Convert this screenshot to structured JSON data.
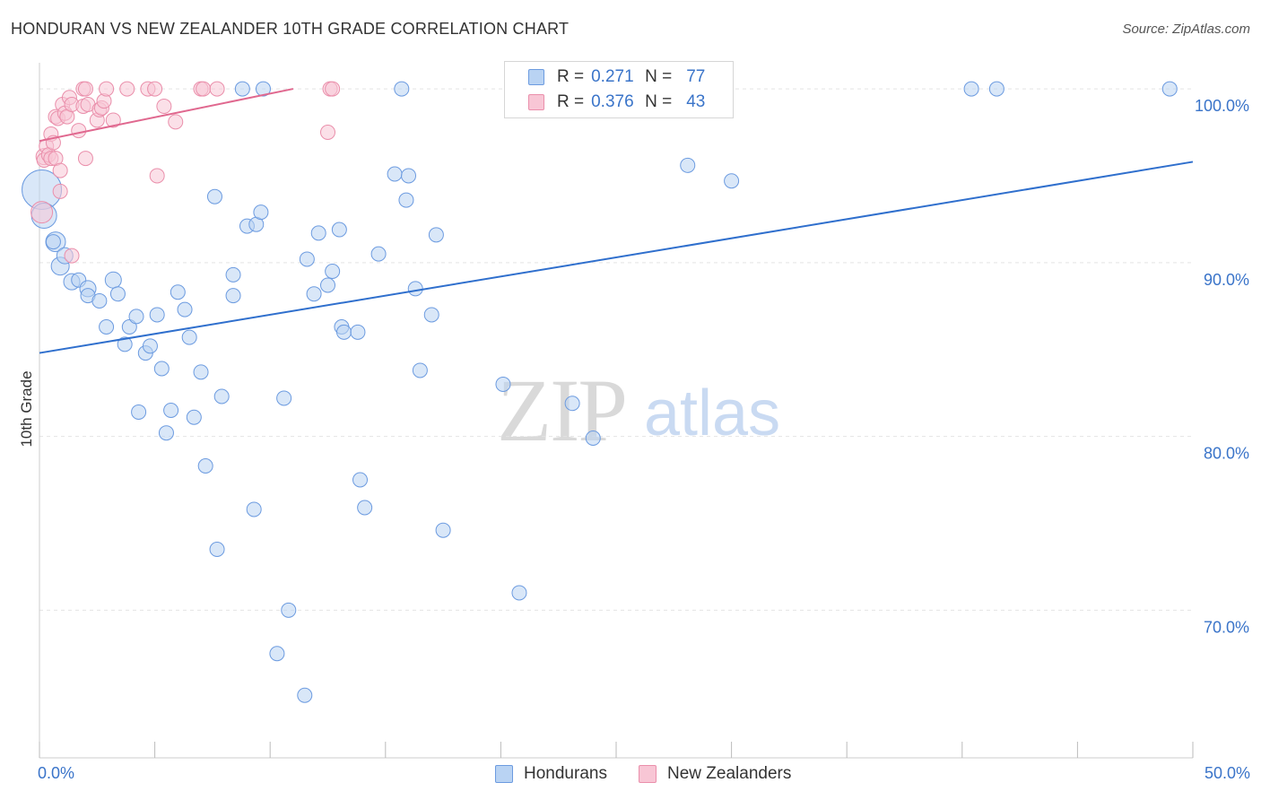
{
  "title": "HONDURAN VS NEW ZEALANDER 10TH GRADE CORRELATION CHART",
  "source": "Source: ZipAtlas.com",
  "watermark": {
    "zip": "ZIP",
    "atlas": "atlas"
  },
  "legend_top": {
    "rows": [
      {
        "r_label": "R =",
        "r_value": "0.271",
        "n_label": "N =",
        "n_value": "77"
      },
      {
        "r_label": "R =",
        "r_value": "0.376",
        "n_label": "N =",
        "n_value": "43"
      }
    ]
  },
  "colors": {
    "blue_fill": "#b9d3f3",
    "blue_stroke": "#6c9be0",
    "blue_line": "#2f6fcd",
    "pink_fill": "#f8c6d5",
    "pink_stroke": "#ea8fab",
    "pink_line": "#e0688f",
    "axis_text": "#3a74c9",
    "grid": "#e4e4e4"
  },
  "chart_data": {
    "type": "scatter",
    "title": "HONDURAN VS NEW ZEALANDER 10TH GRADE CORRELATION CHART",
    "xlabel": "",
    "ylabel": "10th Grade",
    "xlim": [
      0,
      50
    ],
    "ylim": [
      61.5,
      101.5
    ],
    "x_tick_labels": [
      "0.0%",
      "50.0%"
    ],
    "y_ticks": [
      70,
      80,
      90,
      100
    ],
    "y_tick_labels": [
      "70.0%",
      "80.0%",
      "90.0%",
      "100.0%"
    ],
    "grid": true,
    "legend_position": "bottom",
    "series": [
      {
        "name": "Hondurans",
        "color": "#6c9be0",
        "trendline": {
          "x": [
            0,
            50
          ],
          "y": [
            84.8,
            95.8
          ]
        },
        "points": [
          [
            0.1,
            94.2,
            22
          ],
          [
            0.2,
            92.7,
            14
          ],
          [
            0.7,
            91.2,
            11
          ],
          [
            0.9,
            89.8,
            10
          ],
          [
            1.1,
            90.4,
            9
          ],
          [
            1.4,
            88.9,
            9
          ],
          [
            1.7,
            89.0,
            8
          ],
          [
            2.1,
            88.5,
            9
          ],
          [
            2.1,
            88.1,
            8
          ],
          [
            2.6,
            87.8,
            8
          ],
          [
            3.2,
            89.0,
            9
          ],
          [
            3.4,
            88.2,
            8
          ],
          [
            2.9,
            86.3,
            8
          ],
          [
            3.7,
            85.3,
            8
          ],
          [
            3.9,
            86.3,
            8
          ],
          [
            4.2,
            86.9,
            8
          ],
          [
            4.6,
            84.8,
            8
          ],
          [
            4.8,
            85.2,
            8
          ],
          [
            5.1,
            87.0,
            8
          ],
          [
            5.3,
            83.9,
            8
          ],
          [
            5.7,
            81.5,
            8
          ],
          [
            6.0,
            88.3,
            8
          ],
          [
            6.3,
            87.3,
            8
          ],
          [
            6.5,
            85.7,
            8
          ],
          [
            4.3,
            81.4,
            8
          ],
          [
            5.5,
            80.2,
            8
          ],
          [
            6.7,
            81.1,
            8
          ],
          [
            7.0,
            83.7,
            8
          ],
          [
            7.2,
            78.3,
            8
          ],
          [
            7.6,
            93.8,
            8
          ],
          [
            7.9,
            82.3,
            8
          ],
          [
            8.4,
            89.3,
            8
          ],
          [
            8.4,
            88.1,
            8
          ],
          [
            8.8,
            100.0,
            8
          ],
          [
            9.0,
            92.1,
            8
          ],
          [
            9.4,
            92.2,
            8
          ],
          [
            9.6,
            92.9,
            8
          ],
          [
            9.7,
            100.0,
            8
          ],
          [
            7.7,
            73.5,
            8
          ],
          [
            9.3,
            75.8,
            8
          ],
          [
            10.6,
            82.2,
            8
          ],
          [
            10.8,
            70.0,
            8
          ],
          [
            10.3,
            67.5,
            8
          ],
          [
            11.5,
            65.1,
            8
          ],
          [
            11.6,
            90.2,
            8
          ],
          [
            11.9,
            88.2,
            8
          ],
          [
            12.1,
            91.7,
            8
          ],
          [
            12.5,
            88.7,
            8
          ],
          [
            12.7,
            89.5,
            8
          ],
          [
            13.0,
            91.9,
            8
          ],
          [
            13.1,
            86.3,
            8
          ],
          [
            13.2,
            86.0,
            8
          ],
          [
            13.8,
            86.0,
            8
          ],
          [
            13.9,
            77.5,
            8
          ],
          [
            14.1,
            75.9,
            8
          ],
          [
            14.7,
            90.5,
            8
          ],
          [
            15.4,
            95.1,
            8
          ],
          [
            15.7,
            100.0,
            8
          ],
          [
            15.9,
            93.6,
            8
          ],
          [
            16.0,
            95.0,
            8
          ],
          [
            16.3,
            88.5,
            8
          ],
          [
            16.5,
            83.8,
            8
          ],
          [
            17.0,
            87.0,
            8
          ],
          [
            17.2,
            91.6,
            8
          ],
          [
            17.5,
            74.6,
            8
          ],
          [
            20.1,
            83.0,
            8
          ],
          [
            20.8,
            71.0,
            8
          ],
          [
            23.1,
            81.9,
            8
          ],
          [
            24.0,
            79.9,
            8
          ],
          [
            25.4,
            100.0,
            8
          ],
          [
            28.1,
            95.6,
            8
          ],
          [
            28.7,
            100.0,
            8
          ],
          [
            30.0,
            94.7,
            8
          ],
          [
            40.4,
            100.0,
            8
          ],
          [
            41.5,
            100.0,
            8
          ],
          [
            49.0,
            100.0,
            8
          ],
          [
            0.6,
            91.2,
            8
          ]
        ]
      },
      {
        "name": "New Zealanders",
        "color": "#ea8fab",
        "trendline": {
          "x": [
            0,
            11
          ],
          "y": [
            97.0,
            100.0
          ]
        },
        "points": [
          [
            0.1,
            92.9,
            12
          ],
          [
            0.2,
            96.1,
            9
          ],
          [
            0.2,
            95.9,
            8
          ],
          [
            0.3,
            96.7,
            8
          ],
          [
            0.4,
            96.2,
            8
          ],
          [
            0.5,
            97.4,
            8
          ],
          [
            0.5,
            96.0,
            8
          ],
          [
            0.6,
            96.9,
            8
          ],
          [
            0.7,
            96.0,
            8
          ],
          [
            0.7,
            98.4,
            8
          ],
          [
            0.8,
            98.3,
            8
          ],
          [
            0.9,
            95.3,
            8
          ],
          [
            0.9,
            94.1,
            8
          ],
          [
            1.0,
            99.1,
            8
          ],
          [
            1.1,
            98.6,
            8
          ],
          [
            1.2,
            98.4,
            8
          ],
          [
            1.3,
            99.5,
            8
          ],
          [
            1.4,
            99.1,
            8
          ],
          [
            1.4,
            90.4,
            8
          ],
          [
            1.7,
            97.6,
            8
          ],
          [
            1.9,
            99.0,
            8
          ],
          [
            1.9,
            100.0,
            8
          ],
          [
            2.0,
            100.0,
            8
          ],
          [
            2.0,
            96.0,
            8
          ],
          [
            2.1,
            99.1,
            8
          ],
          [
            2.5,
            98.2,
            8
          ],
          [
            2.6,
            98.8,
            8
          ],
          [
            2.7,
            98.9,
            8
          ],
          [
            2.8,
            99.3,
            8
          ],
          [
            3.2,
            98.2,
            8
          ],
          [
            2.9,
            100.0,
            8
          ],
          [
            3.8,
            100.0,
            8
          ],
          [
            4.7,
            100.0,
            8
          ],
          [
            5.0,
            100.0,
            8
          ],
          [
            5.1,
            95.0,
            8
          ],
          [
            5.4,
            99.0,
            8
          ],
          [
            5.9,
            98.1,
            8
          ],
          [
            7.0,
            100.0,
            8
          ],
          [
            7.1,
            100.0,
            8
          ],
          [
            7.7,
            100.0,
            8
          ],
          [
            12.5,
            97.5,
            8
          ],
          [
            12.6,
            100.0,
            8
          ],
          [
            12.7,
            100.0,
            8
          ]
        ]
      }
    ]
  },
  "bottom_legend": {
    "items": [
      "Hondurans",
      "New Zealanders"
    ]
  }
}
